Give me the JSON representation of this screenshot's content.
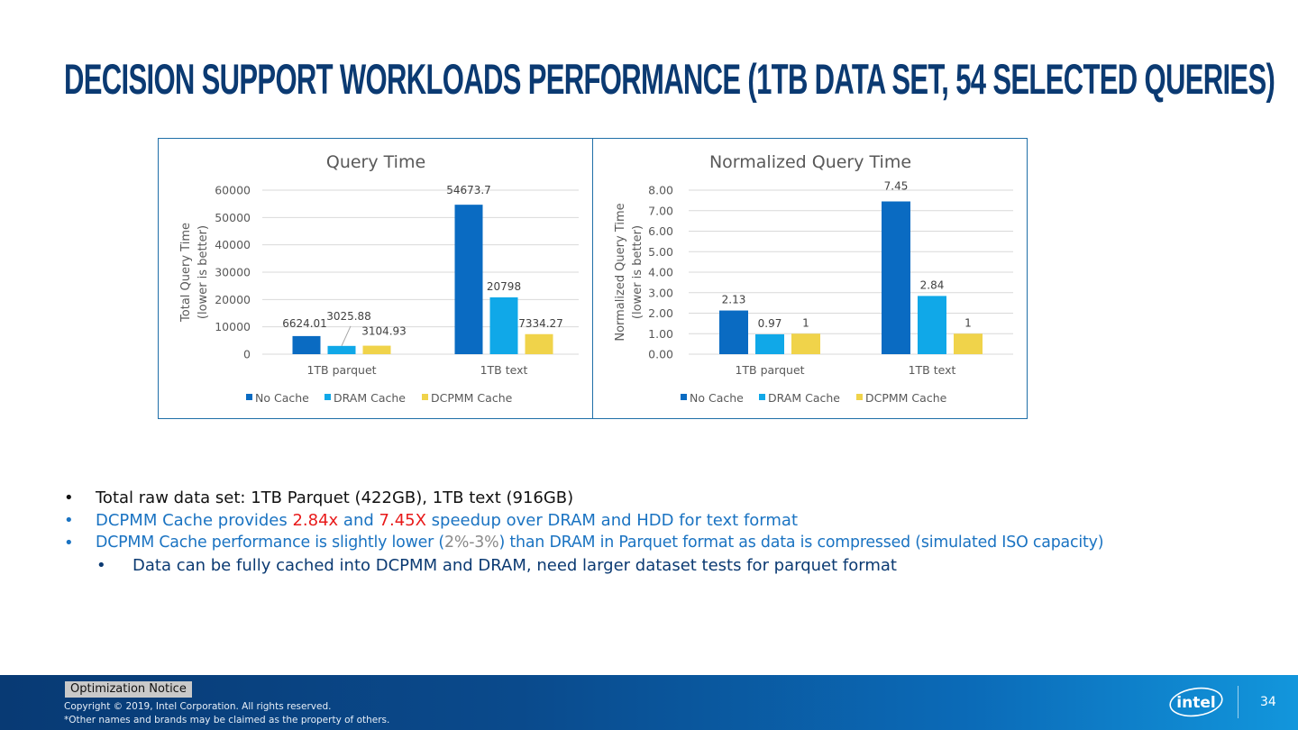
{
  "slide": {
    "title": "DECISION SUPPORT WORKLOADS PERFORMANCE (1TB DATA SET, 54 SELECTED QUERIES)"
  },
  "colors": {
    "no_cache": "#0a6bc2",
    "dram_cache": "#10a8e8",
    "dcpmm_cache": "#f0d34a",
    "title": "#0b3a72",
    "bullet_blue": "#1a73c2",
    "highlight_red": "#e81a1a"
  },
  "chart_data": [
    {
      "type": "bar",
      "title": "Query Time",
      "xlabel": "",
      "ylabel": "Total Query Time",
      "ylabel2": "(lower is better)",
      "categories": [
        "1TB parquet",
        "1TB text"
      ],
      "ylim": [
        0,
        60000
      ],
      "yticks": [
        0,
        10000,
        20000,
        30000,
        40000,
        50000,
        60000
      ],
      "ytick_labels": [
        "0",
        "10000",
        "20000",
        "30000",
        "40000",
        "50000",
        "60000"
      ],
      "grid": true,
      "legend": "bottom",
      "series": [
        {
          "name": "No Cache",
          "values": [
            6624.01,
            54673.7
          ],
          "labels": [
            "6624.01",
            "54673.7"
          ]
        },
        {
          "name": "DRAM Cache",
          "values": [
            3025.88,
            20798
          ],
          "labels": [
            "3025.88",
            "20798"
          ]
        },
        {
          "name": "DCPMM Cache",
          "values": [
            3104.93,
            7334.27
          ],
          "labels": [
            "3104.93",
            "7334.27"
          ]
        }
      ]
    },
    {
      "type": "bar",
      "title": "Normalized Query Time",
      "xlabel": "",
      "ylabel": "Normalized Query Time",
      "ylabel2": "(lower is better)",
      "categories": [
        "1TB parquet",
        "1TB text"
      ],
      "ylim": [
        0,
        8
      ],
      "yticks": [
        0,
        1,
        2,
        3,
        4,
        5,
        6,
        7,
        8
      ],
      "ytick_labels": [
        "0.00",
        "1.00",
        "2.00",
        "3.00",
        "4.00",
        "5.00",
        "6.00",
        "7.00",
        "8.00"
      ],
      "grid": true,
      "legend": "bottom",
      "series": [
        {
          "name": "No Cache",
          "values": [
            2.13,
            7.45
          ],
          "labels": [
            "2.13",
            "7.45"
          ]
        },
        {
          "name": "DRAM Cache",
          "values": [
            0.97,
            2.84
          ],
          "labels": [
            "0.97",
            "2.84"
          ]
        },
        {
          "name": "DCPMM Cache",
          "values": [
            1,
            1
          ],
          "labels": [
            "1",
            "1"
          ]
        }
      ]
    }
  ],
  "bullets": [
    {
      "bullet": "•",
      "segments": [
        {
          "text": "Total raw data set: 1TB Parquet (422GB), 1TB text (916GB)",
          "color": "black"
        }
      ]
    },
    {
      "bullet": "•",
      "segments": [
        {
          "text": "DCPMM Cache provides ",
          "color": "blue"
        },
        {
          "text": "2.84x",
          "color": "red"
        },
        {
          "text": " and ",
          "color": "blue"
        },
        {
          "text": "7.45X",
          "color": "red"
        },
        {
          "text": " speedup over DRAM and HDD for text format",
          "color": "blue"
        }
      ]
    },
    {
      "bullet": "•",
      "segments": [
        {
          "text": "DCPMM Cache performance is slightly lower (",
          "color": "blue"
        },
        {
          "text": "2%-3%",
          "color": "gray"
        },
        {
          "text": ") than DRAM in Parquet format as data is compressed (simulated ISO capacity)",
          "color": "blue"
        }
      ]
    },
    {
      "bullet": "•",
      "segments": [
        {
          "text": "Data can be fully cached into DCPMM and DRAM, need larger dataset tests for parquet format",
          "color": "navy"
        }
      ]
    }
  ],
  "footer": {
    "optimization_notice": "Optimization Notice",
    "copyright": "Copyright ©  2019, Intel Corporation. All rights reserved.",
    "others": "*Other names and brands may be claimed as the property of others.",
    "logo_text": "intel",
    "page_number": "34"
  }
}
